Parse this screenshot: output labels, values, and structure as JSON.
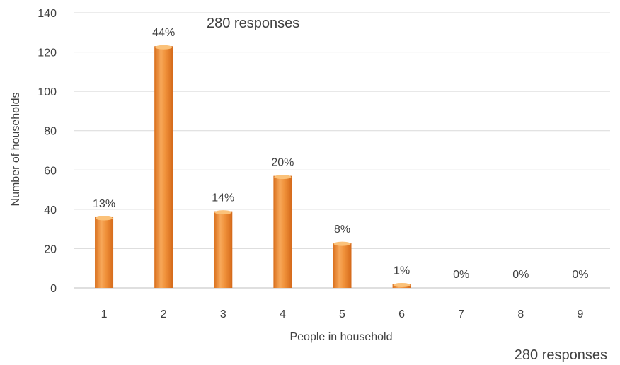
{
  "chart_data": {
    "type": "bar",
    "categories": [
      "1",
      "2",
      "3",
      "4",
      "5",
      "6",
      "7",
      "8",
      "9"
    ],
    "values": [
      36,
      123,
      39,
      57,
      23,
      2,
      0,
      0,
      0
    ],
    "data_labels": [
      "13%",
      "44%",
      "14%",
      "20%",
      "8%",
      "1%",
      "0%",
      "0%",
      "0%"
    ],
    "xlabel": "People in household",
    "ylabel": "Number of households",
    "ylim": [
      0,
      140
    ],
    "yticks": [
      0,
      20,
      40,
      60,
      80,
      100,
      120,
      140
    ],
    "annotations": [
      "280 responses",
      "280 responses"
    ],
    "grid": true,
    "legend": "none",
    "colors": {
      "bar_main": "#f0913a",
      "bar_light": "#fbc27a",
      "bar_dark": "#d96f1c",
      "grid": "#d9d9d9",
      "text": "#404040"
    }
  }
}
